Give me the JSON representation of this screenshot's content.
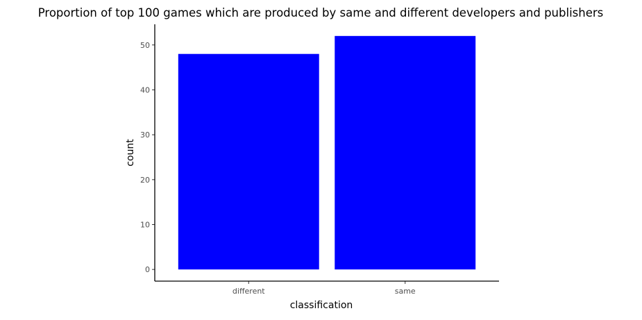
{
  "chart_data": {
    "type": "bar",
    "title": "Proportion of top 100 games which are produced by same and different developers and publishers",
    "xlabel": "classification",
    "ylabel": "count",
    "categories": [
      "different",
      "same"
    ],
    "values": [
      48,
      52
    ],
    "ylim": [
      -2.6,
      54.6
    ],
    "yticks": [
      0,
      10,
      20,
      30,
      40,
      50
    ],
    "bar_color": "#0000ff",
    "grid": false,
    "legend": "none"
  }
}
